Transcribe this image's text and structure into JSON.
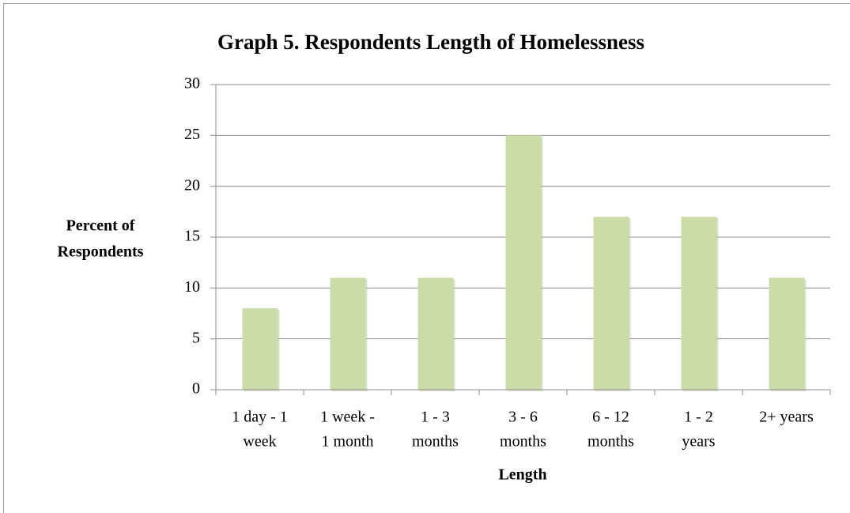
{
  "chart_data": {
    "type": "bar",
    "title": "Graph 5. Respondents Length of Homelessness",
    "x_label": "Length",
    "y_label": [
      "Percent of",
      "Respondents"
    ],
    "categories": [
      [
        "1 day - 1",
        "week"
      ],
      [
        "1 week -",
        "1 month"
      ],
      [
        "1 - 3",
        "months"
      ],
      [
        "3 - 6",
        "months"
      ],
      [
        "6 - 12",
        "months"
      ],
      [
        "1 - 2",
        "years"
      ],
      [
        "2+ years"
      ]
    ],
    "values": [
      8,
      11,
      11,
      25,
      17,
      17,
      11
    ],
    "color": "#ccdca8",
    "ylim": [
      0,
      30
    ],
    "yticks": [
      0,
      5,
      10,
      15,
      20,
      25,
      30
    ],
    "grid": true
  }
}
